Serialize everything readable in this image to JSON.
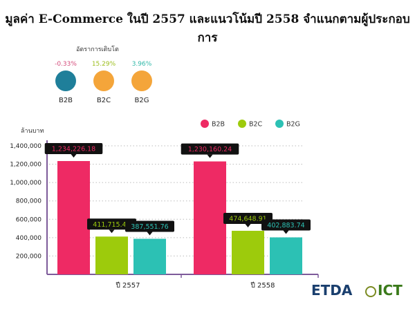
{
  "title": "มูลค่า E-Commerce ในปี 2557 และแนวโน้มปี 2558 จำแนกตามผู้ประกอบการ",
  "growth": {
    "title": "อัตราการเติบโต",
    "items": [
      {
        "label": "B2B",
        "value": "-0.33%",
        "color": "#d44a7a",
        "icon": "business-buildings-icon",
        "icon_color": "#1f7f9a"
      },
      {
        "label": "B2C",
        "value": "15.29%",
        "color": "#9cbe1c",
        "icon": "person-laptop-icon",
        "icon_color": "#f4a53a"
      },
      {
        "label": "B2G",
        "value": "3.96%",
        "color": "#2fb8a8",
        "icon": "group-people-icon",
        "icon_color": "#f4a53a"
      }
    ]
  },
  "logos": {
    "etda": "ETDA",
    "ict": "ICT"
  },
  "chart_data": {
    "type": "bar",
    "ylabel": "ล้านบาท",
    "ylim": [
      0,
      1400000
    ],
    "yticks": [
      200000,
      400000,
      600000,
      800000,
      1000000,
      1200000,
      1400000
    ],
    "ytick_labels": [
      "200,000",
      "400,000",
      "600,000",
      "800,000",
      "1,000,000",
      "1,200,000",
      "1,400,000"
    ],
    "grid": true,
    "legend_position": "top-right",
    "categories": [
      "ปี 2557",
      "ปี 2558"
    ],
    "series": [
      {
        "name": "B2B",
        "color": "#ee2a64",
        "values": [
          1234226.18,
          1230160.24
        ],
        "labels": [
          "1,234,226.18",
          "1,230,160.24"
        ]
      },
      {
        "name": "B2C",
        "color": "#9dcb0c",
        "values": [
          411715.41,
          474648.91
        ],
        "labels": [
          "411,715.41",
          "474,648.91"
        ]
      },
      {
        "name": "B2G",
        "color": "#2cc1b4",
        "values": [
          387551.76,
          402883.74
        ],
        "labels": [
          "387,551.76",
          "402,883.74"
        ]
      }
    ]
  }
}
